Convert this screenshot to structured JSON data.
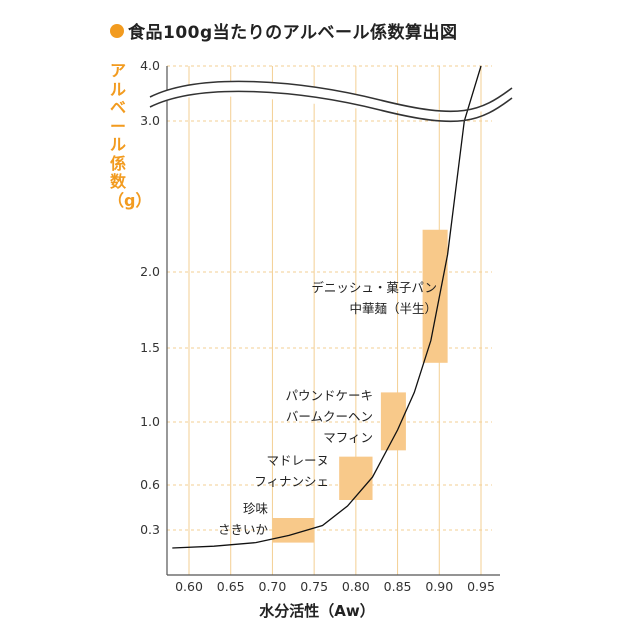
{
  "title": "食品100g当たりのアルベール係数算出図",
  "colors": {
    "accent": "#f29b1f",
    "box": "#f8c98a",
    "grid": "#f3cf93",
    "axis": "#555555",
    "curve": "#111111"
  },
  "chart_data": {
    "type": "line",
    "title": "食品100g当たりのアルベール係数算出図",
    "xlabel": "水分活性（Aw）",
    "ylabel": "アルベール係数（g）",
    "x_ticks": [
      "0.60",
      "0.65",
      "0.70",
      "0.75",
      "0.80",
      "0.85",
      "0.90",
      "0.95"
    ],
    "y_ticks": [
      "0.3",
      "0.6",
      "1.0",
      "1.5",
      "2.0",
      "3.0",
      "4.0"
    ],
    "y_axis_break": "between 2.0 and 3.0",
    "grid": true,
    "series": [
      {
        "x": [
          0.58,
          0.63,
          0.68,
          0.72,
          0.76,
          0.79,
          0.82,
          0.85,
          0.87,
          0.89,
          0.91,
          0.93,
          0.95
        ],
        "y": [
          0.2,
          0.21,
          0.23,
          0.27,
          0.33,
          0.46,
          0.65,
          0.95,
          1.2,
          1.55,
          2.1,
          3.0,
          4.0
        ]
      }
    ],
    "regions": [
      {
        "labels": [
          "珍味",
          "さきいか"
        ],
        "x": [
          0.7,
          0.75
        ],
        "y": [
          0.23,
          0.38
        ]
      },
      {
        "labels": [
          "マドレーヌ",
          "フィナンシェ"
        ],
        "x": [
          0.78,
          0.82
        ],
        "y": [
          0.5,
          0.78
        ]
      },
      {
        "labels": [
          "パウンドケーキ",
          "バームクーヘン",
          "マフィン"
        ],
        "x": [
          0.83,
          0.86
        ],
        "y": [
          0.82,
          1.2
        ]
      },
      {
        "labels": [
          "デニッシュ・菓子パン",
          "中華麺（半生）"
        ],
        "x": [
          0.88,
          0.91
        ],
        "y": [
          1.4,
          2.25
        ]
      }
    ]
  }
}
